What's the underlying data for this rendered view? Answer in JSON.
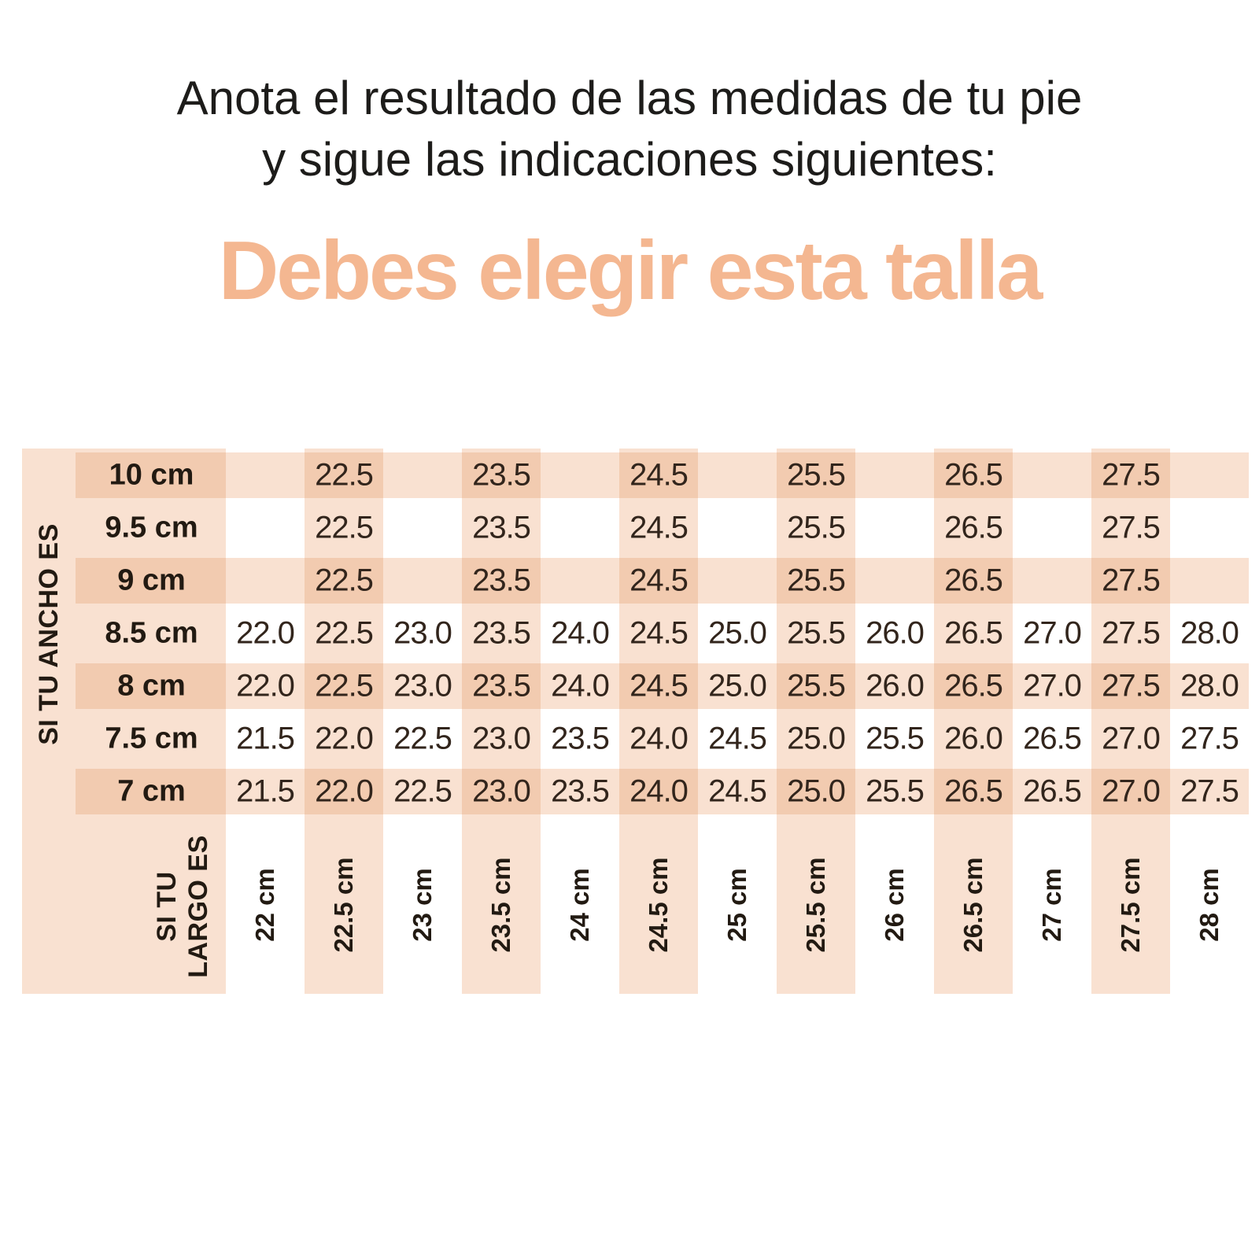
{
  "title": {
    "line1": "Anota el resultado de las medidas de tu pie",
    "line2": "y sigue las indicaciones siguientes:"
  },
  "heading": {
    "text": "Debes elegir esta talla"
  },
  "colors": {
    "background": "#ffffff",
    "heading_text": "#f4b791",
    "stripe_light": "#f9e1d1",
    "stripe_dark": "#f2cbb0",
    "title_text": "#1d1c1a",
    "label_text": "#221a12",
    "value_text": "#32251c"
  },
  "chart_data": {
    "type": "table",
    "title": "Debes elegir esta talla",
    "width_axis_label": "SI TU ANCHO ES",
    "length_axis_label": "SI TU LARGO ES",
    "length_axis_label_lines": [
      "SI TU",
      "LARGO ES"
    ],
    "row_headers": [
      "10 cm",
      "9.5 cm",
      "9 cm",
      "8.5 cm",
      "8 cm",
      "7.5 cm",
      "7 cm"
    ],
    "col_headers": [
      "22 cm",
      "22.5 cm",
      "23 cm",
      "23.5 cm",
      "24 cm",
      "24.5 cm",
      "25 cm",
      "25.5 cm",
      "26 cm",
      "26.5 cm",
      "27 cm",
      "27.5 cm",
      "28 cm"
    ],
    "matrix": [
      [
        "",
        "22.5",
        "",
        "23.5",
        "",
        "24.5",
        "",
        "25.5",
        "",
        "26.5",
        "",
        "27.5",
        ""
      ],
      [
        "",
        "22.5",
        "",
        "23.5",
        "",
        "24.5",
        "",
        "25.5",
        "",
        "26.5",
        "",
        "27.5",
        ""
      ],
      [
        "",
        "22.5",
        "",
        "23.5",
        "",
        "24.5",
        "",
        "25.5",
        "",
        "26.5",
        "",
        "27.5",
        ""
      ],
      [
        "22.0",
        "22.5",
        "23.0",
        "23.5",
        "24.0",
        "24.5",
        "25.0",
        "25.5",
        "26.0",
        "26.5",
        "27.0",
        "27.5",
        "28.0"
      ],
      [
        "22.0",
        "22.5",
        "23.0",
        "23.5",
        "24.0",
        "24.5",
        "25.0",
        "25.5",
        "26.0",
        "26.5",
        "27.0",
        "27.5",
        "28.0"
      ],
      [
        "21.5",
        "22.0",
        "22.5",
        "23.0",
        "23.5",
        "24.0",
        "24.5",
        "25.0",
        "25.5",
        "26.0",
        "26.5",
        "27.0",
        "27.5"
      ],
      [
        "21.5",
        "22.0",
        "22.5",
        "23.0",
        "23.5",
        "24.0",
        "24.5",
        "25.0",
        "25.5",
        "26.5",
        "26.5",
        "27.0",
        "27.5"
      ]
    ]
  }
}
